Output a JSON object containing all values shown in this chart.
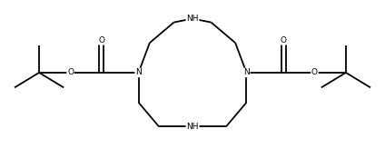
{
  "bg_color": "#ffffff",
  "line_color": "#000000",
  "line_width": 1.3,
  "font_size": 6.5,
  "figsize": [
    4.24,
    1.64
  ],
  "dpi": 100,
  "xlim": [
    0.0,
    10.0
  ],
  "ylim": [
    0.3,
    4.3
  ]
}
